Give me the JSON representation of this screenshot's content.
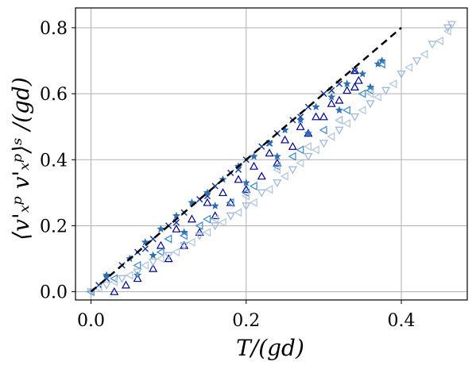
{
  "chart_data": {
    "type": "scatter",
    "title": "",
    "xlabel": "T/(gd)",
    "ylabel": "⟨v'ₓᵖ v'ₓᵖ⟩ˢ /(gd)",
    "xlim": [
      -0.02,
      0.485
    ],
    "ylim": [
      -0.025,
      0.86
    ],
    "xticks": [
      0.0,
      0.2,
      0.4
    ],
    "yticks": [
      0.0,
      0.2,
      0.4,
      0.6,
      0.8
    ],
    "xtick_labels": [
      "0.0",
      "0.2",
      "0.4"
    ],
    "ytick_labels": [
      "0.0",
      "0.2",
      "0.4",
      "0.6",
      "0.8"
    ],
    "grid": true,
    "legend": "none",
    "reference_line": {
      "style": "dashed",
      "color": "#000000",
      "x": [
        0.0,
        0.4
      ],
      "y": [
        0.0,
        0.8
      ]
    },
    "series": [
      {
        "marker": "triangle-up-open",
        "color": "#00008b",
        "points": [
          [
            0.03,
            0.0
          ],
          [
            0.045,
            0.02
          ],
          [
            0.06,
            0.04
          ],
          [
            0.08,
            0.07
          ],
          [
            0.1,
            0.1
          ],
          [
            0.12,
            0.14
          ],
          [
            0.14,
            0.18
          ],
          [
            0.16,
            0.23
          ],
          [
            0.18,
            0.27
          ],
          [
            0.2,
            0.31
          ],
          [
            0.22,
            0.35
          ],
          [
            0.24,
            0.39
          ],
          [
            0.26,
            0.44
          ],
          [
            0.28,
            0.48
          ],
          [
            0.3,
            0.53
          ],
          [
            0.32,
            0.58
          ],
          [
            0.34,
            0.62
          ],
          [
            0.345,
            0.64
          ],
          [
            0.09,
            0.14
          ],
          [
            0.13,
            0.22
          ],
          [
            0.17,
            0.3
          ],
          [
            0.21,
            0.38
          ],
          [
            0.25,
            0.46
          ],
          [
            0.29,
            0.53
          ],
          [
            0.33,
            0.61
          ],
          [
            0.11,
            0.19
          ],
          [
            0.15,
            0.27
          ],
          [
            0.19,
            0.34
          ],
          [
            0.23,
            0.42
          ],
          [
            0.27,
            0.5
          ],
          [
            0.31,
            0.57
          ],
          [
            0.34,
            0.67
          ]
        ]
      },
      {
        "marker": "x",
        "color": "#1a3a9e",
        "points": [
          [
            0.01,
            0.02
          ],
          [
            0.02,
            0.04
          ],
          [
            0.04,
            0.08
          ],
          [
            0.06,
            0.12
          ],
          [
            0.08,
            0.16
          ],
          [
            0.1,
            0.2
          ],
          [
            0.12,
            0.24
          ],
          [
            0.14,
            0.28
          ],
          [
            0.16,
            0.32
          ],
          [
            0.18,
            0.36
          ],
          [
            0.2,
            0.4
          ],
          [
            0.22,
            0.44
          ],
          [
            0.24,
            0.48
          ],
          [
            0.26,
            0.52
          ],
          [
            0.28,
            0.56
          ],
          [
            0.3,
            0.6
          ],
          [
            0.32,
            0.63
          ],
          [
            0.34,
            0.67
          ],
          [
            0.07,
            0.13
          ],
          [
            0.11,
            0.21
          ],
          [
            0.15,
            0.29
          ],
          [
            0.19,
            0.37
          ],
          [
            0.23,
            0.45
          ],
          [
            0.27,
            0.53
          ],
          [
            0.31,
            0.61
          ]
        ]
      },
      {
        "marker": "star",
        "color": "#2f6fb0",
        "points": [
          [
            0.02,
            0.05
          ],
          [
            0.05,
            0.1
          ],
          [
            0.07,
            0.15
          ],
          [
            0.09,
            0.19
          ],
          [
            0.11,
            0.23
          ],
          [
            0.13,
            0.27
          ],
          [
            0.15,
            0.3
          ],
          [
            0.17,
            0.34
          ],
          [
            0.19,
            0.38
          ],
          [
            0.21,
            0.41
          ],
          [
            0.23,
            0.45
          ],
          [
            0.25,
            0.49
          ],
          [
            0.27,
            0.52
          ],
          [
            0.29,
            0.56
          ],
          [
            0.31,
            0.59
          ],
          [
            0.33,
            0.63
          ],
          [
            0.35,
            0.66
          ],
          [
            0.37,
            0.69
          ],
          [
            0.06,
            0.05
          ],
          [
            0.08,
            0.11
          ],
          [
            0.12,
            0.18
          ],
          [
            0.16,
            0.26
          ],
          [
            0.2,
            0.33
          ],
          [
            0.24,
            0.41
          ],
          [
            0.28,
            0.48
          ],
          [
            0.32,
            0.55
          ],
          [
            0.36,
            0.62
          ],
          [
            0.375,
            0.7
          ]
        ]
      },
      {
        "marker": "triangle-left-open",
        "color": "#3a87c4",
        "points": [
          [
            0.0,
            0.0
          ],
          [
            0.03,
            0.04
          ],
          [
            0.06,
            0.08
          ],
          [
            0.09,
            0.12
          ],
          [
            0.12,
            0.17
          ],
          [
            0.15,
            0.22
          ],
          [
            0.18,
            0.27
          ],
          [
            0.21,
            0.32
          ],
          [
            0.24,
            0.38
          ],
          [
            0.27,
            0.43
          ],
          [
            0.3,
            0.49
          ],
          [
            0.33,
            0.55
          ],
          [
            0.36,
            0.61
          ],
          [
            0.375,
            0.69
          ],
          [
            0.1,
            0.16
          ],
          [
            0.14,
            0.2
          ],
          [
            0.2,
            0.3
          ],
          [
            0.26,
            0.41
          ],
          [
            0.32,
            0.52
          ],
          [
            0.35,
            0.6
          ]
        ]
      },
      {
        "marker": "triangle-down-open",
        "color": "#9bb4d8",
        "points": [
          [
            0.0,
            0.0
          ],
          [
            0.02,
            0.02
          ],
          [
            0.04,
            0.04
          ],
          [
            0.06,
            0.06
          ],
          [
            0.08,
            0.09
          ],
          [
            0.1,
            0.11
          ],
          [
            0.12,
            0.14
          ],
          [
            0.14,
            0.17
          ],
          [
            0.16,
            0.2
          ],
          [
            0.18,
            0.23
          ],
          [
            0.2,
            0.26
          ],
          [
            0.22,
            0.3
          ],
          [
            0.24,
            0.33
          ],
          [
            0.26,
            0.37
          ],
          [
            0.28,
            0.41
          ],
          [
            0.3,
            0.45
          ],
          [
            0.32,
            0.49
          ],
          [
            0.34,
            0.53
          ],
          [
            0.36,
            0.57
          ],
          [
            0.38,
            0.61
          ],
          [
            0.4,
            0.66
          ],
          [
            0.42,
            0.7
          ],
          [
            0.44,
            0.75
          ],
          [
            0.46,
            0.8
          ],
          [
            0.465,
            0.81
          ]
        ]
      },
      {
        "marker": "triangle-left-open",
        "color": "#b0c4de",
        "points": [
          [
            0.01,
            0.01
          ],
          [
            0.03,
            0.03
          ],
          [
            0.05,
            0.05
          ],
          [
            0.07,
            0.08
          ],
          [
            0.09,
            0.1
          ],
          [
            0.11,
            0.12
          ],
          [
            0.13,
            0.15
          ],
          [
            0.15,
            0.18
          ],
          [
            0.17,
            0.21
          ],
          [
            0.19,
            0.24
          ],
          [
            0.21,
            0.27
          ],
          [
            0.23,
            0.31
          ],
          [
            0.25,
            0.35
          ],
          [
            0.27,
            0.39
          ],
          [
            0.29,
            0.43
          ],
          [
            0.31,
            0.47
          ],
          [
            0.33,
            0.51
          ],
          [
            0.35,
            0.55
          ],
          [
            0.37,
            0.59
          ],
          [
            0.39,
            0.63
          ],
          [
            0.41,
            0.68
          ],
          [
            0.43,
            0.72
          ],
          [
            0.45,
            0.76
          ],
          [
            0.46,
            0.79
          ],
          [
            0.16,
            0.22
          ],
          [
            0.2,
            0.29
          ],
          [
            0.24,
            0.37
          ],
          [
            0.28,
            0.44
          ],
          [
            0.32,
            0.52
          ],
          [
            0.36,
            0.6
          ]
        ]
      }
    ]
  }
}
